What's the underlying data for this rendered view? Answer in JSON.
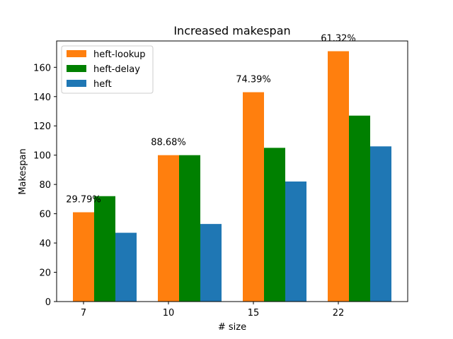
{
  "chart_data": {
    "type": "bar",
    "title": "Increased makespan",
    "xlabel": "# size",
    "ylabel": "Makespan",
    "categories": [
      "7",
      "10",
      "15",
      "22"
    ],
    "ylim": [
      0,
      178
    ],
    "yticks": [
      0,
      20,
      40,
      60,
      80,
      100,
      120,
      140,
      160
    ],
    "grid": false,
    "legend_position": "top-left",
    "series": [
      {
        "name": "heft-lookup",
        "color": "#ff7f0e",
        "values": [
          61,
          100,
          143,
          171
        ]
      },
      {
        "name": "heft-delay",
        "color": "#008000",
        "values": [
          72,
          100,
          105,
          127
        ]
      },
      {
        "name": "heft",
        "color": "#1f77b4",
        "values": [
          47,
          53,
          82,
          106
        ]
      }
    ],
    "annotations": [
      "29.79%",
      "88.68%",
      "74.39%",
      "61.32%"
    ]
  }
}
